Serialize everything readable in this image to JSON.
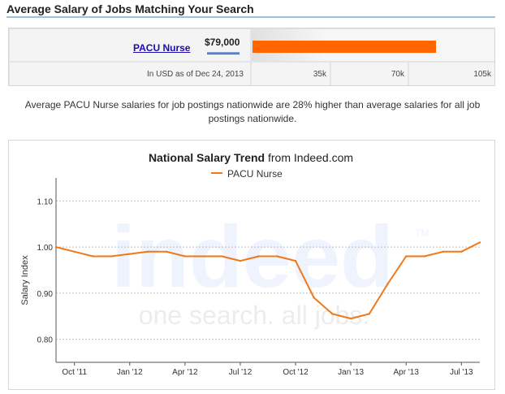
{
  "header": {
    "title": "Average Salary of Jobs Matching Your Search"
  },
  "salary": {
    "job_title": "PACU Nurse",
    "amount_label": "$79,000",
    "amount_value": 79000,
    "currency_note": "In USD as of Dec 24, 2013",
    "scale_ticks": [
      "35k",
      "70k",
      "105k"
    ],
    "scale_max": 105000,
    "bar_color": "#ff6600"
  },
  "description": "Average PACU Nurse salaries for job postings nationwide are 28% higher than average salaries for all job postings nationwide.",
  "chart": {
    "title_bold": "National Salary Trend",
    "title_rest": " from Indeed.com",
    "legend": "PACU Nurse",
    "watermark_logo": "indeed",
    "watermark_tm": "TM",
    "watermark_tagline": "one search. all jobs."
  },
  "chart_data": {
    "type": "line",
    "title": "National Salary Trend from Indeed.com",
    "xlabel": "",
    "ylabel": "Salary Index",
    "ylim": [
      0.75,
      1.15
    ],
    "yticks": [
      "1.10",
      "1.00",
      "0.90",
      "0.80"
    ],
    "ytick_values": [
      1.1,
      1.0,
      0.9,
      0.8
    ],
    "x": [
      "Sep '11",
      "Oct '11",
      "Nov '11",
      "Dec '11",
      "Jan '12",
      "Feb '12",
      "Mar '12",
      "Apr '12",
      "May '12",
      "Jun '12",
      "Jul '12",
      "Aug '12",
      "Sep '12",
      "Oct '12",
      "Nov '12",
      "Dec '12",
      "Jan '13",
      "Feb '13",
      "Mar '13",
      "Apr '13",
      "May '13",
      "Jun '13",
      "Jul '13",
      "Aug '13"
    ],
    "xtick_labels": [
      {
        "index": 1,
        "label": "Oct '11"
      },
      {
        "index": 4,
        "label": "Jan '12"
      },
      {
        "index": 7,
        "label": "Apr '12"
      },
      {
        "index": 10,
        "label": "Jul '12"
      },
      {
        "index": 13,
        "label": "Oct '12"
      },
      {
        "index": 16,
        "label": "Jan '13"
      },
      {
        "index": 19,
        "label": "Apr '13"
      },
      {
        "index": 22,
        "label": "Jul '13"
      }
    ],
    "series": [
      {
        "name": "PACU Nurse",
        "color": "#f07818",
        "values": [
          1.0,
          0.99,
          0.98,
          0.98,
          0.985,
          0.99,
          0.99,
          0.98,
          0.98,
          0.98,
          0.97,
          0.98,
          0.98,
          0.97,
          0.89,
          0.855,
          0.845,
          0.855,
          0.92,
          0.98,
          0.98,
          0.99,
          0.99,
          1.01
        ]
      }
    ],
    "grid": true,
    "legend_position": "top-center"
  }
}
